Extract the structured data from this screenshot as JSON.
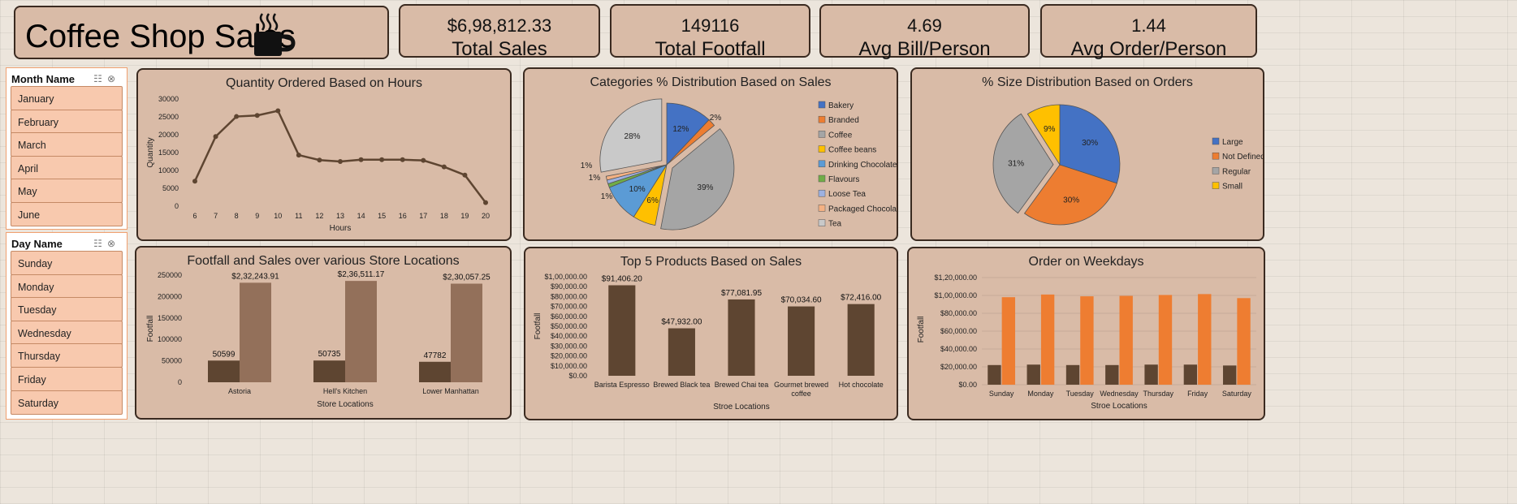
{
  "header": {
    "title": "Coffee Shop Sales"
  },
  "kpis": [
    {
      "value": "$6,98,812.33",
      "label": "Total Sales"
    },
    {
      "value": "149116",
      "label": "Total Footfall"
    },
    {
      "value": "4.69",
      "label": "Avg Bill/Person"
    },
    {
      "value": "1.44",
      "label": "Avg Order/Person"
    }
  ],
  "slicers": {
    "month": {
      "label": "Month Name",
      "items": [
        "January",
        "February",
        "March",
        "April",
        "May",
        "June"
      ]
    },
    "day": {
      "label": "Day Name",
      "items": [
        "Sunday",
        "Monday",
        "Tuesday",
        "Wednesday",
        "Thursday",
        "Friday",
        "Saturday"
      ]
    }
  },
  "colors": {
    "dark_brown": "#5e4531",
    "light_brown": "#93705a",
    "orange": "#ee7d31",
    "panel": "#d9bba7"
  },
  "chart_data": [
    {
      "type": "line",
      "title": "Quantity Ordered Based on Hours",
      "xlabel": "Hours",
      "ylabel": "Quantity",
      "x": [
        6,
        7,
        8,
        9,
        10,
        11,
        12,
        13,
        14,
        15,
        16,
        17,
        18,
        19,
        20
      ],
      "values": [
        7000,
        19500,
        25100,
        25400,
        26700,
        14300,
        12900,
        12500,
        13000,
        13000,
        13000,
        12800,
        11000,
        8700,
        1000
      ],
      "yticks": [
        "0",
        "5000",
        "10000",
        "15000",
        "20000",
        "25000",
        "30000"
      ],
      "ylim": [
        0,
        30000
      ]
    },
    {
      "type": "pie",
      "title": "Categories % Distribution Based on Sales",
      "categories": [
        "Bakery",
        "Branded",
        "Coffee",
        "Coffee beans",
        "Drinking Chocolate",
        "Flavours",
        "Loose Tea",
        "Packaged Chocolate",
        "Tea"
      ],
      "values": [
        12,
        2,
        39,
        6,
        10,
        1,
        1,
        1,
        28
      ],
      "labels": [
        "12%",
        "2%",
        "39%",
        "6%",
        "10%",
        "1%",
        "1%",
        "1%",
        "28%"
      ],
      "colors": [
        "#4472c4",
        "#ed7d31",
        "#a5a5a5",
        "#ffc000",
        "#5b9bd5",
        "#70ad47",
        "#9db1e0",
        "#f4b183",
        "#c9c9c9"
      ],
      "legend": "right"
    },
    {
      "type": "pie",
      "title": "% Size Distribution Based on Orders",
      "categories": [
        "Large",
        "Not Defined",
        "Regular",
        "Small"
      ],
      "values": [
        30,
        30,
        31,
        9
      ],
      "labels": [
        "30%",
        "30%",
        "31%",
        "9%"
      ],
      "colors": [
        "#4472c4",
        "#ed7d31",
        "#a5a5a5",
        "#ffc000"
      ],
      "legend": "right"
    },
    {
      "type": "bar",
      "title": "Footfall and Sales over various Store Locations",
      "xlabel": "Store Locations",
      "ylabel": "Footfall",
      "categories": [
        "Astoria",
        "Hell's Kitchen",
        "Lower Manhattan"
      ],
      "series": [
        {
          "values": [
            50599,
            50735,
            47782
          ],
          "labels": [
            "50599",
            "50735",
            "47782"
          ]
        },
        {
          "values": [
            232243.91,
            236511.17,
            230057.25
          ],
          "labels": [
            "$2,32,243.91",
            "$2,36,511.17",
            "$2,30,057.25"
          ]
        }
      ],
      "yticks": [
        "0",
        "50000",
        "100000",
        "150000",
        "200000",
        "250000"
      ],
      "ylim": [
        0,
        250000
      ]
    },
    {
      "type": "bar",
      "title": "Top 5 Products Based on Sales",
      "xlabel": "Stroe Locations",
      "ylabel": "Footfall",
      "categories": [
        "Barista Espresso",
        "Brewed Black tea",
        "Brewed Chai tea",
        "Gourmet brewed coffee",
        "Hot chocolate"
      ],
      "values": [
        91406.2,
        47932.0,
        77081.95,
        70034.6,
        72416.0
      ],
      "labels": [
        "$91,406.20",
        "$47,932.00",
        "$77,081.95",
        "$70,034.60",
        "$72,416.00"
      ],
      "yticks": [
        "$0.00",
        "$10,000.00",
        "$20,000.00",
        "$30,000.00",
        "$40,000.00",
        "$50,000.00",
        "$60,000.00",
        "$70,000.00",
        "$80,000.00",
        "$90,000.00",
        "$1,00,000.00"
      ],
      "ylim": [
        0,
        100000
      ]
    },
    {
      "type": "bar",
      "title": "Order on Weekdays",
      "xlabel": "Stroe Locations",
      "ylabel": "Footfall",
      "categories": [
        "Sunday",
        "Monday",
        "Tuesday",
        "Wednesday",
        "Thursday",
        "Friday",
        "Saturday"
      ],
      "series": [
        {
          "values": [
            22000,
            22500,
            22000,
            22000,
            22500,
            22500,
            21500
          ]
        },
        {
          "values": [
            98000,
            101000,
            99000,
            99500,
            100500,
            101500,
            97000
          ]
        }
      ],
      "yticks": [
        "$0.00",
        "$20,000.00",
        "$40,000.00",
        "$60,000.00",
        "$80,000.00",
        "$1,00,000.00",
        "$1,20,000.00"
      ],
      "ylim": [
        0,
        120000
      ]
    }
  ]
}
